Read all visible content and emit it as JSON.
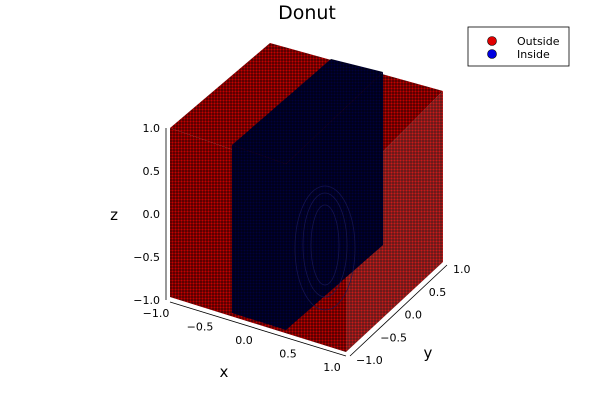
{
  "chart_data": {
    "type": "scatter",
    "title": "Donut",
    "xlabel": "x",
    "ylabel": "y",
    "zlabel": "z",
    "xlim": [
      -1.0,
      1.0
    ],
    "ylim": [
      -1.0,
      1.0
    ],
    "zlim": [
      -1.0,
      1.0
    ],
    "x_ticks": [
      "−1.0",
      "−0.5",
      "0.0",
      "0.5",
      "1.0"
    ],
    "y_ticks": [
      "−1.0",
      "−0.5",
      "0.0",
      "0.5",
      "1.0"
    ],
    "z_ticks": [
      "−1.0",
      "−0.5",
      "0.0",
      "0.5",
      "1.0"
    ],
    "legend_position": "top-right",
    "series": [
      {
        "name": "Outside",
        "color": "#e00000"
      },
      {
        "name": "Inside",
        "color": "#0000e0"
      }
    ]
  }
}
